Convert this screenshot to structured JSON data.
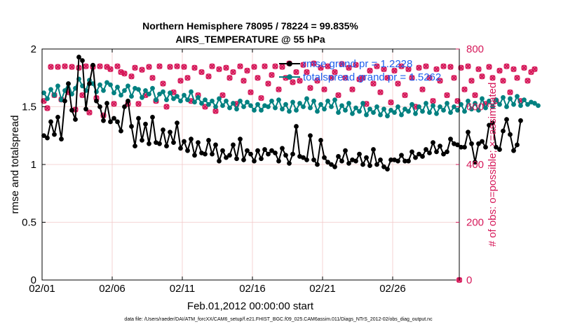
{
  "chart_data": {
    "type": "line",
    "title_line1": "Northern Hemisphere 78095 / 78224 = 99.835%",
    "title_line2": "AIRS_TEMPERATURE @ 55 hPa",
    "xlabel": "Feb.01,2012 00:00:00 start",
    "ylabel_left": "rmse and totalspread",
    "ylabel_right": "# of obs: o=possible; ×=assimilated",
    "footer": "data file: /Users/raeder/DAI/ATM_forcXX/CAM6_setup/f.e21.FHIST_BGC.f09_025.CAM6assim.011/Diags_NTrS_2012-02/obs_diag_output.nc",
    "xlim": [
      0,
      29.75
    ],
    "ylim_left": [
      0,
      2
    ],
    "ylim_right": [
      0,
      800
    ],
    "x_ticks": [
      {
        "value": 0,
        "label": "02/01"
      },
      {
        "value": 5,
        "label": "02/06"
      },
      {
        "value": 10,
        "label": "02/11"
      },
      {
        "value": 15,
        "label": "02/16"
      },
      {
        "value": 20,
        "label": "02/21"
      },
      {
        "value": 25,
        "label": "02/26"
      }
    ],
    "y_ticks_left": [
      {
        "value": 0,
        "label": "0"
      },
      {
        "value": 0.5,
        "label": "0.5"
      },
      {
        "value": 1,
        "label": "1"
      },
      {
        "value": 1.5,
        "label": "1.5"
      },
      {
        "value": 2,
        "label": "2"
      }
    ],
    "y_ticks_right": [
      {
        "value": 0,
        "label": "0"
      },
      {
        "value": 200,
        "label": "200"
      },
      {
        "value": 400,
        "label": "400"
      },
      {
        "value": 600,
        "label": "600"
      },
      {
        "value": 800,
        "label": "800"
      }
    ],
    "x_step": 0.25,
    "colors": {
      "rmse": "#000000",
      "totalspread": "#008080",
      "obs": "#d6195a",
      "legend_text": "#2060ee",
      "grid": "#f2c8c8",
      "axis": "#000000"
    },
    "legend": [
      {
        "name": "rmse grand pr = 1.2228",
        "series": "rmse"
      },
      {
        "name": "totalspread grand pr = 1.5262",
        "series": "totalspread"
      }
    ],
    "series": [
      {
        "name": "rmse",
        "axis": "left",
        "values": [
          1.25,
          1.23,
          1.37,
          1.26,
          1.41,
          1.22,
          1.55,
          1.7,
          1.47,
          1.39,
          1.93,
          1.9,
          1.48,
          1.7,
          1.86,
          1.55,
          1.5,
          1.38,
          1.53,
          1.37,
          1.4,
          1.37,
          1.29,
          1.5,
          1.55,
          1.33,
          1.16,
          1.4,
          1.21,
          1.35,
          1.18,
          1.41,
          1.19,
          1.18,
          1.3,
          1.16,
          1.28,
          1.19,
          1.36,
          1.14,
          1.2,
          1.12,
          1.22,
          1.08,
          1.19,
          1.1,
          1.09,
          1.21,
          1.09,
          1.17,
          1.03,
          1.12,
          1.06,
          1.08,
          1.17,
          1.05,
          1.22,
          1.04,
          1.12,
          1.09,
          1.03,
          1.12,
          1.05,
          1.13,
          1.09,
          1.12,
          1.1,
          1.03,
          1.14,
          1.08,
          1.01,
          1.09,
          1.33,
          1.07,
          1.06,
          1.04,
          1.25,
          1.04,
          1.0,
          1.21,
          1.06,
          1.02,
          1.0,
          0.98,
          1.07,
          1.03,
          1.12,
          1.01,
          1.04,
          1.03,
          1.09,
          1.0,
          1.06,
          0.99,
          1.13,
          1.0,
          1.04,
          0.98,
          0.96,
          1.04,
          1.04,
          1.03,
          1.08,
          1.03,
          1.03,
          1.11,
          1.06,
          1.09,
          1.07,
          1.13,
          1.1,
          1.19,
          1.11,
          1.16,
          1.09,
          1.11,
          1.22,
          1.18,
          1.17,
          1.15,
          1.15,
          1.28,
          1.18,
          1.02,
          1.18,
          1.2,
          1.15,
          1.34,
          1.36,
          1.15,
          1.13,
          1.29,
          1.39,
          1.26,
          1.12,
          1.17,
          1.38
        ]
      },
      {
        "name": "totalspread",
        "axis": "left",
        "values": [
          1.62,
          1.57,
          1.65,
          1.6,
          1.68,
          1.56,
          1.64,
          1.7,
          1.61,
          1.66,
          1.74,
          1.68,
          1.64,
          1.73,
          1.7,
          1.63,
          1.69,
          1.64,
          1.71,
          1.69,
          1.62,
          1.67,
          1.6,
          1.64,
          1.68,
          1.59,
          1.66,
          1.65,
          1.58,
          1.64,
          1.61,
          1.66,
          1.56,
          1.61,
          1.63,
          1.56,
          1.62,
          1.57,
          1.59,
          1.55,
          1.6,
          1.56,
          1.63,
          1.54,
          1.58,
          1.53,
          1.56,
          1.52,
          1.55,
          1.5,
          1.57,
          1.51,
          1.55,
          1.49,
          1.53,
          1.48,
          1.55,
          1.5,
          1.54,
          1.51,
          1.47,
          1.52,
          1.47,
          1.51,
          1.5,
          1.55,
          1.49,
          1.56,
          1.48,
          1.52,
          1.46,
          1.54,
          1.47,
          1.53,
          1.5,
          1.57,
          1.49,
          1.55,
          1.46,
          1.52,
          1.48,
          1.55,
          1.5,
          1.56,
          1.45,
          1.51,
          1.47,
          1.53,
          1.44,
          1.49,
          1.46,
          1.53,
          1.43,
          1.48,
          1.45,
          1.5,
          1.43,
          1.48,
          1.42,
          1.47,
          1.45,
          1.5,
          1.43,
          1.48,
          1.46,
          1.52,
          1.44,
          1.5,
          1.46,
          1.53,
          1.45,
          1.51,
          1.44,
          1.5,
          1.47,
          1.53,
          1.45,
          1.5,
          1.47,
          1.52,
          1.46,
          1.55,
          1.48,
          1.53,
          1.47,
          1.57,
          1.49,
          1.55,
          1.5,
          1.56,
          1.52,
          1.58,
          1.5,
          1.57,
          1.52,
          1.59,
          1.51,
          1.56,
          1.52,
          1.54,
          1.53,
          1.51
        ]
      },
      {
        "name": "obs_possible",
        "axis": "right",
        "values": [
          620,
          595,
          738,
          640,
          738,
          625,
          740,
          650,
          738,
          590,
          735,
          640,
          740,
          580,
          738,
          630,
          740,
          570,
          738,
          730,
          610,
          740,
          720,
          715,
          610,
          705,
          735,
          610,
          728,
          640,
          738,
          700,
          620,
          740,
          680,
          600,
          738,
          650,
          740,
          690,
          738,
          700,
          620,
          735,
          640,
          720,
          600,
          705,
          740,
          585,
          730,
          640,
          735,
          700,
          720,
          610,
          740,
          690,
          725,
          650,
          738,
          700,
          630,
          740,
          680,
          710,
          740,
          660,
          738,
          700,
          750,
          685,
          720,
          690,
          745,
          720,
          665,
          750,
          690,
          735,
          660,
          740,
          700,
          720,
          640,
          748,
          700,
          735,
          660,
          745,
          695,
          700,
          610,
          725,
          680,
          740,
          650,
          730,
          700,
          615,
          725,
          680,
          740,
          640,
          730,
          700,
          600,
          735,
          660,
          740,
          700,
          620,
          730,
          690,
          740,
          640,
          738,
          700,
          620,
          735,
          660,
          740,
          690,
          640,
          730,
          705,
          610,
          738,
          700,
          620,
          725,
          690,
          740,
          650,
          730,
          700,
          620,
          735,
          690,
          720,
          730,
          0
        ]
      },
      {
        "name": "obs_assimilated",
        "axis": "right",
        "values": [
          620,
          595,
          738,
          640,
          738,
          625,
          740,
          650,
          738,
          590,
          735,
          640,
          740,
          580,
          738,
          630,
          740,
          570,
          738,
          730,
          610,
          740,
          720,
          715,
          610,
          705,
          735,
          610,
          728,
          640,
          738,
          700,
          620,
          740,
          680,
          600,
          738,
          650,
          740,
          690,
          738,
          700,
          620,
          735,
          640,
          720,
          600,
          705,
          740,
          585,
          730,
          640,
          735,
          700,
          720,
          610,
          740,
          690,
          725,
          650,
          738,
          700,
          630,
          740,
          680,
          710,
          740,
          660,
          738,
          700,
          750,
          685,
          720,
          690,
          745,
          720,
          665,
          750,
          690,
          735,
          660,
          740,
          700,
          720,
          640,
          748,
          700,
          735,
          660,
          745,
          695,
          700,
          610,
          725,
          680,
          740,
          650,
          730,
          700,
          615,
          725,
          680,
          740,
          640,
          730,
          700,
          600,
          735,
          660,
          740,
          700,
          620,
          730,
          690,
          740,
          640,
          738,
          700,
          620,
          735,
          660,
          740,
          690,
          640,
          730,
          705,
          610,
          738,
          700,
          620,
          725,
          690,
          740,
          650,
          730,
          700,
          620,
          735,
          690,
          720,
          730,
          0
        ]
      }
    ]
  }
}
